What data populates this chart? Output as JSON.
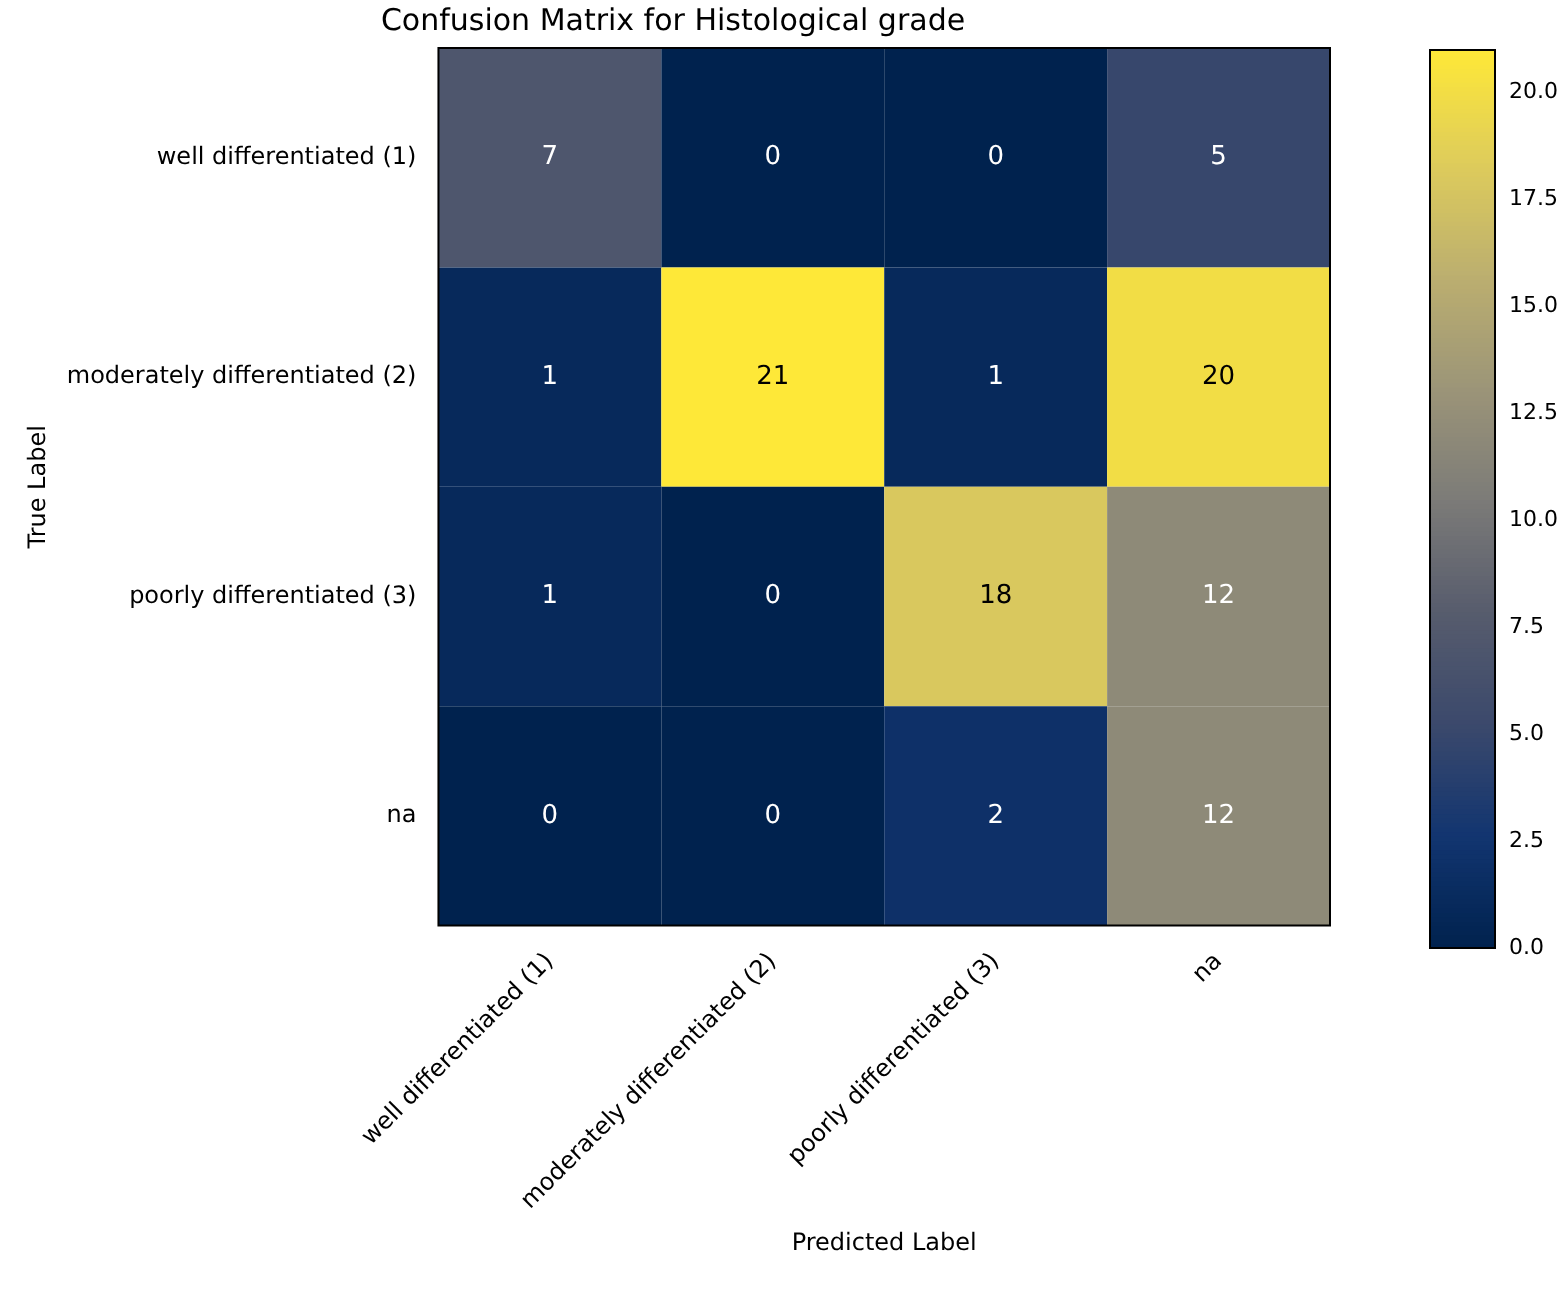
{
  "chart_data": {
    "type": "heatmap",
    "title": "Confusion Matrix for Histological grade",
    "xlabel": "Predicted Label",
    "ylabel": "True Label",
    "categories": [
      "well differentiated (1)",
      "moderately differentiated (2)",
      "poorly differentiated (3)",
      "na"
    ],
    "y_categories": [
      "well differentiated (1)",
      "moderately differentiated (2)",
      "poorly differentiated (3)",
      "na"
    ],
    "cells": [
      [
        7,
        0,
        0,
        5
      ],
      [
        1,
        21,
        1,
        20
      ],
      [
        1,
        0,
        18,
        12
      ],
      [
        0,
        0,
        2,
        12
      ]
    ],
    "data_labels": true,
    "clim": [
      0,
      21
    ],
    "cticks": [
      {
        "value": 0,
        "label": "0.0"
      },
      {
        "value": 2.5,
        "label": "2.5"
      },
      {
        "value": 5,
        "label": "5.0"
      },
      {
        "value": 7.5,
        "label": "7.5"
      },
      {
        "value": 10,
        "label": "10.0"
      },
      {
        "value": 12.5,
        "label": "12.5"
      },
      {
        "value": 15,
        "label": "15.0"
      },
      {
        "value": 17.5,
        "label": "17.5"
      },
      {
        "value": 20,
        "label": "20.0"
      }
    ]
  }
}
